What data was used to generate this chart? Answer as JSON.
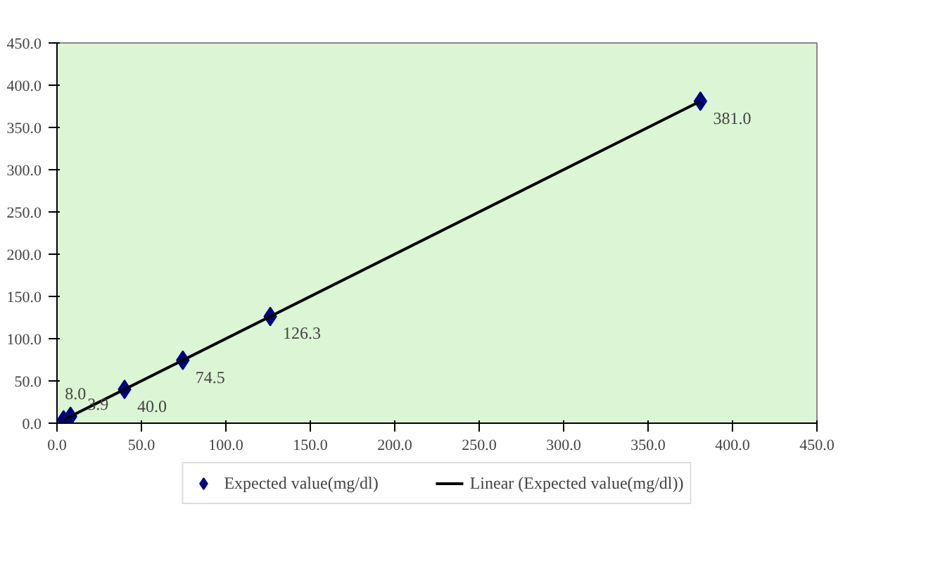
{
  "chart_data": {
    "type": "scatter",
    "legend": "bottom",
    "grid": false,
    "xlim": [
      0,
      450
    ],
    "ylim": [
      0,
      450
    ],
    "xticks": [
      {
        "value": 0,
        "label": "0.0"
      },
      {
        "value": 50,
        "label": "50.0"
      },
      {
        "value": 100,
        "label": "100.0"
      },
      {
        "value": 150,
        "label": "150.0"
      },
      {
        "value": 200,
        "label": "200.0"
      },
      {
        "value": 250,
        "label": "250.0"
      },
      {
        "value": 300,
        "label": "300.0"
      },
      {
        "value": 350,
        "label": "350.0"
      },
      {
        "value": 400,
        "label": "400.0"
      },
      {
        "value": 450,
        "label": "450.0"
      }
    ],
    "yticks": [
      {
        "value": 0,
        "label": "0.0"
      },
      {
        "value": 50,
        "label": "50.0"
      },
      {
        "value": 100,
        "label": "100.0"
      },
      {
        "value": 150,
        "label": "150.0"
      },
      {
        "value": 200,
        "label": "200.0"
      },
      {
        "value": 250,
        "label": "250.0"
      },
      {
        "value": 300,
        "label": "300.0"
      },
      {
        "value": 350,
        "label": "350.0"
      },
      {
        "value": 400,
        "label": "400.0"
      },
      {
        "value": 450,
        "label": "450.0"
      }
    ],
    "series": [
      {
        "name": "Expected value(mg/dl)",
        "marker": "diamond",
        "color": "#000080",
        "x": [
          3.9,
          8.0,
          40.0,
          74.5,
          126.3,
          381.0
        ],
        "values": [
          3.9,
          8.0,
          40.0,
          74.5,
          126.3,
          381.0
        ],
        "value_labels": [
          "3.9",
          "8.0",
          "40.0",
          "74.5",
          "126.3",
          "381.0"
        ]
      },
      {
        "name": "Linear (Expected value(mg/dl))",
        "type": "line",
        "color": "#000000",
        "line_style": "solid",
        "x": [
          3.9,
          381.0
        ],
        "values": [
          3.9,
          381.0
        ]
      }
    ]
  }
}
